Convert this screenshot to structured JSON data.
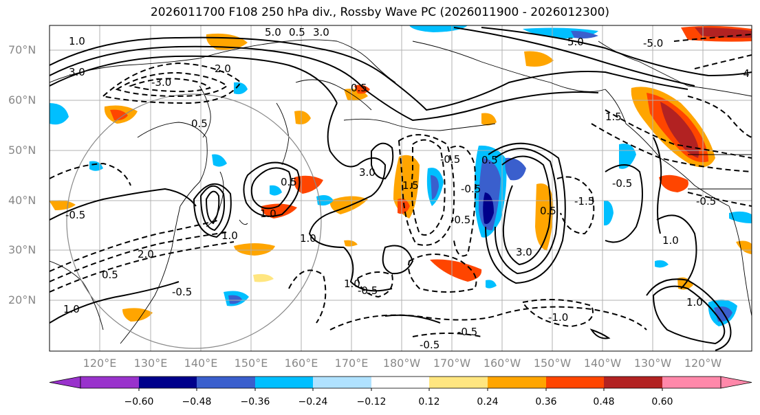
{
  "title": "2026011700 F108 250 hPa div., Rossby Wave PC (2026011900 - 2026012300)",
  "map": {
    "lat_labels": [
      "70°N",
      "60°N",
      "50°N",
      "40°N",
      "30°N",
      "20°N"
    ],
    "lon_labels": [
      "120°E",
      "130°E",
      "140°E",
      "150°E",
      "160°E",
      "170°E",
      "180°W",
      "170°W",
      "160°W",
      "150°W",
      "140°W",
      "130°W",
      "120°W"
    ]
  },
  "contour_labels": {
    "c1": "5.0",
    "c2": "0.5",
    "c3": "3.0",
    "c4": "1.0",
    "c5": "3.0",
    "c6": "2.0",
    "c7": "-3.0",
    "c8": "0.5",
    "c9": "0.5",
    "c10": "-0.5",
    "c11": "1.0",
    "c12": "1.0",
    "c13": "1.0",
    "c14": "2.0",
    "c15": "1.0",
    "c16": "0.5",
    "c17": "-0.5",
    "c18": "-0.5",
    "c19": "-0.5",
    "c20": "3.0",
    "c21": "1.5",
    "c22": "1.0",
    "c23": "-1.0",
    "c24": "-0.5",
    "c25": "-0.5",
    "c26": "-0.5",
    "c27": "5.0",
    "c28": "0.5",
    "c29": "-0.5",
    "c30": "3.0",
    "c31": "0.5",
    "c32": "-1.5",
    "c33": "-0.5",
    "c34": "1.5",
    "c35": "1.0",
    "c36": "-0.5",
    "c37": "1.0",
    "c38": "-5.0",
    "c39": "-4",
    "c40": "0.5"
  },
  "colorbar": {
    "ticks": [
      "−0.60",
      "−0.48",
      "−0.36",
      "−0.24",
      "−0.12",
      "0.12",
      "0.24",
      "0.36",
      "0.48",
      "0.60"
    ],
    "colors": [
      "#9932cc",
      "#00008b",
      "#3a5fcd",
      "#00bfff",
      "#b0e2ff",
      "#ffffff",
      "#ffe680",
      "#ffa500",
      "#ff4500",
      "#b22222",
      "#ff88aa"
    ]
  }
}
